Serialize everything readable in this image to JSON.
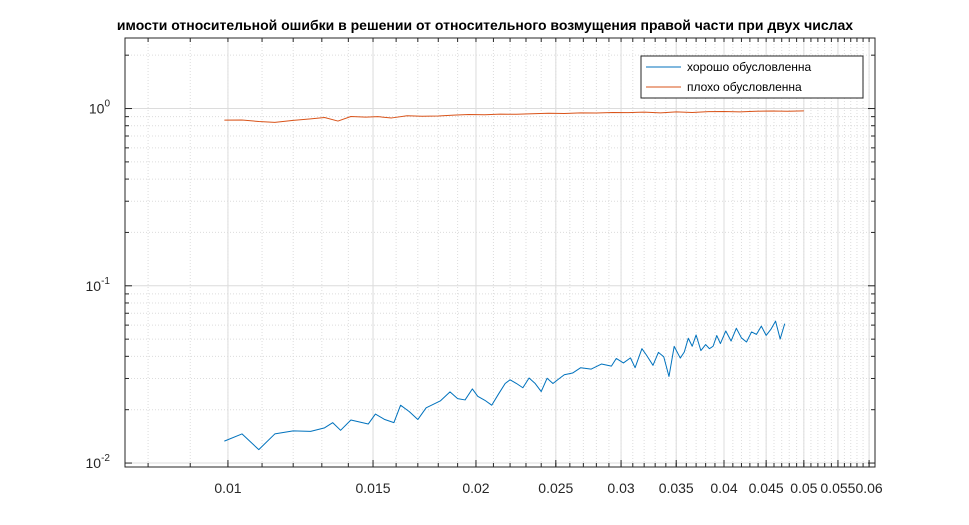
{
  "chart_data": {
    "type": "line",
    "title": "имости относительной ошибки в решении от относительного возмущения правой части при двух числах",
    "xlabel": "",
    "ylabel": "",
    "x_scale": "log",
    "y_scale": "log",
    "xlim": [
      0.0075,
      0.061
    ],
    "ylim": [
      0.0095,
      2.5
    ],
    "grid": true,
    "minor_grid": true,
    "legend_position": "top-right",
    "x_ticks": [
      0.01,
      0.015,
      0.02,
      0.025,
      0.03,
      0.035,
      0.04,
      0.045,
      0.05,
      0.055,
      0.06
    ],
    "x_tick_labels": [
      "0.01",
      "0.015",
      "0.02",
      "0.025",
      "0.03",
      "0.035",
      "0.04",
      "0.045",
      "0.05",
      "0.055",
      "0.06"
    ],
    "y_ticks": [
      0.01,
      0.1,
      1
    ],
    "y_tick_labels": [
      {
        "base": "10",
        "exp": "-2"
      },
      {
        "base": "10",
        "exp": "-1"
      },
      {
        "base": "10",
        "exp": "0"
      }
    ],
    "series": [
      {
        "name": "хорошо обусловленна",
        "color": "#0072BD",
        "x": [
          0.0099,
          0.0104,
          0.0109,
          0.0114,
          0.012,
          0.0126,
          0.0131,
          0.0134,
          0.0137,
          0.0141,
          0.0148,
          0.0151,
          0.0155,
          0.0159,
          0.0162,
          0.0166,
          0.017,
          0.0174,
          0.0181,
          0.0186,
          0.019,
          0.0194,
          0.0198,
          0.0201,
          0.0205,
          0.0209,
          0.0213,
          0.0217,
          0.022,
          0.0224,
          0.0228,
          0.0232,
          0.0236,
          0.024,
          0.0244,
          0.0248,
          0.0252,
          0.0256,
          0.0262,
          0.0268,
          0.0276,
          0.0284,
          0.0292,
          0.0296,
          0.0302,
          0.0308,
          0.0312,
          0.0318,
          0.0322,
          0.0328,
          0.0333,
          0.0338,
          0.0343,
          0.0348,
          0.0354,
          0.0358,
          0.0362,
          0.0366,
          0.037,
          0.0375,
          0.038,
          0.0384,
          0.0388,
          0.0392,
          0.0396,
          0.0402,
          0.0408,
          0.0414,
          0.042,
          0.0426,
          0.0432,
          0.0438,
          0.0444,
          0.045,
          0.0456,
          0.0462,
          0.0468,
          0.0474
        ],
        "y": [
          0.0133,
          0.0146,
          0.0119,
          0.0146,
          0.0152,
          0.0151,
          0.0158,
          0.0169,
          0.0153,
          0.0175,
          0.0166,
          0.0189,
          0.0176,
          0.0169,
          0.0212,
          0.0195,
          0.0176,
          0.0205,
          0.0224,
          0.0252,
          0.0231,
          0.0227,
          0.0262,
          0.0238,
          0.0226,
          0.0212,
          0.0245,
          0.0281,
          0.0295,
          0.0281,
          0.0266,
          0.0302,
          0.0281,
          0.0253,
          0.0301,
          0.0281,
          0.0298,
          0.0315,
          0.0322,
          0.0345,
          0.0339,
          0.0362,
          0.0352,
          0.0389,
          0.0367,
          0.0392,
          0.0345,
          0.0442,
          0.0407,
          0.0356,
          0.0421,
          0.0398,
          0.0308,
          0.0455,
          0.0391,
          0.0423,
          0.0506,
          0.0456,
          0.0528,
          0.0431,
          0.0466,
          0.0442,
          0.0456,
          0.0524,
          0.0472,
          0.0556,
          0.0488,
          0.0576,
          0.0508,
          0.0482,
          0.0549,
          0.0532,
          0.0592,
          0.0525,
          0.0568,
          0.0632,
          0.0501,
          0.0612
        ]
      },
      {
        "name": "плохо обусловленна",
        "color": "#D95319",
        "x": [
          0.0099,
          0.0104,
          0.0109,
          0.0114,
          0.012,
          0.0126,
          0.0131,
          0.0136,
          0.0141,
          0.0147,
          0.0152,
          0.0158,
          0.0165,
          0.0172,
          0.018,
          0.0188,
          0.0196,
          0.0205,
          0.0214,
          0.0224,
          0.0234,
          0.0245,
          0.0256,
          0.0268,
          0.028,
          0.0293,
          0.0306,
          0.032,
          0.0335,
          0.035,
          0.0366,
          0.0383,
          0.04,
          0.0418,
          0.0437,
          0.0457,
          0.0478,
          0.05
        ],
        "y": [
          0.86,
          0.862,
          0.845,
          0.835,
          0.858,
          0.875,
          0.89,
          0.85,
          0.902,
          0.895,
          0.9,
          0.885,
          0.91,
          0.905,
          0.908,
          0.918,
          0.925,
          0.922,
          0.93,
          0.928,
          0.935,
          0.94,
          0.938,
          0.945,
          0.943,
          0.95,
          0.948,
          0.955,
          0.945,
          0.958,
          0.95,
          0.96,
          0.962,
          0.958,
          0.965,
          0.968,
          0.966,
          0.97
        ]
      }
    ]
  }
}
